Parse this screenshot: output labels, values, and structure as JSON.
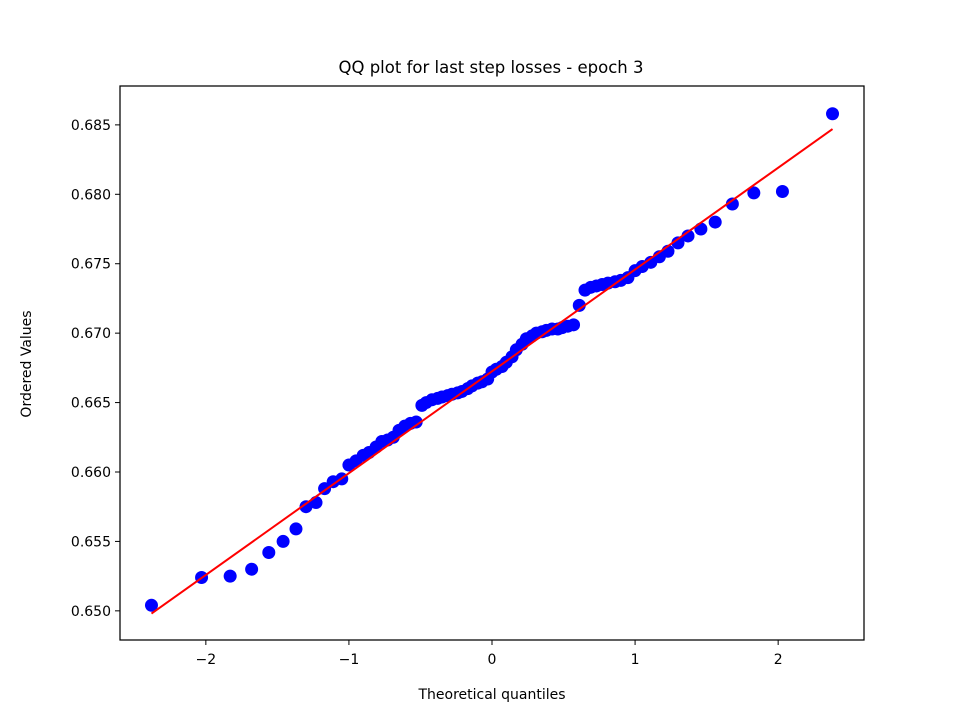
{
  "chart_data": {
    "type": "scatter",
    "title": "QQ plot for last step losses - epoch 3",
    "xlabel": "Theoretical quantiles",
    "ylabel": "Ordered Values",
    "xlim": [
      -2.6,
      2.6
    ],
    "ylim": [
      0.6479,
      0.6878
    ],
    "xticks": [
      -2,
      -1,
      0,
      1,
      2
    ],
    "xtick_labels": [
      "−2",
      "−1",
      "0",
      "1",
      "2"
    ],
    "yticks": [
      0.65,
      0.655,
      0.66,
      0.665,
      0.67,
      0.675,
      0.68,
      0.685
    ],
    "ytick_labels": [
      "0.650",
      "0.655",
      "0.660",
      "0.665",
      "0.670",
      "0.675",
      "0.680",
      "0.685"
    ],
    "grid": false,
    "series": [
      {
        "kind": "points",
        "color": "#0000ff",
        "x": [
          -2.38,
          -2.03,
          -1.83,
          -1.68,
          -1.56,
          -1.46,
          -1.37,
          -1.3,
          -1.23,
          -1.17,
          -1.11,
          -1.05,
          -1.0,
          -0.95,
          -0.9,
          -0.86,
          -0.81,
          -0.77,
          -0.73,
          -0.69,
          -0.65,
          -0.61,
          -0.57,
          -0.53,
          -0.49,
          -0.46,
          -0.42,
          -0.38,
          -0.35,
          -0.31,
          -0.28,
          -0.24,
          -0.21,
          -0.17,
          -0.14,
          -0.1,
          -0.07,
          -0.03,
          0.0,
          0.03,
          0.07,
          0.1,
          0.14,
          0.17,
          0.21,
          0.24,
          0.28,
          0.31,
          0.35,
          0.38,
          0.42,
          0.46,
          0.49,
          0.53,
          0.57,
          0.61,
          0.65,
          0.69,
          0.73,
          0.77,
          0.81,
          0.86,
          0.9,
          0.95,
          1.0,
          1.05,
          1.11,
          1.17,
          1.23,
          1.3,
          1.37,
          1.46,
          1.56,
          1.68,
          1.83,
          2.03,
          2.38
        ],
        "y": [
          0.6504,
          0.6524,
          0.6525,
          0.653,
          0.6542,
          0.655,
          0.6559,
          0.6575,
          0.6578,
          0.6588,
          0.6593,
          0.6595,
          0.6605,
          0.6608,
          0.6612,
          0.6614,
          0.6618,
          0.6622,
          0.6623,
          0.6625,
          0.663,
          0.6633,
          0.6635,
          0.6636,
          0.6648,
          0.665,
          0.6652,
          0.6653,
          0.6654,
          0.6655,
          0.6656,
          0.6657,
          0.6658,
          0.666,
          0.6662,
          0.6664,
          0.6665,
          0.6667,
          0.6672,
          0.6674,
          0.6676,
          0.6679,
          0.6683,
          0.6688,
          0.6692,
          0.6696,
          0.6698,
          0.67,
          0.6701,
          0.6702,
          0.6703,
          0.6703,
          0.6704,
          0.6705,
          0.6706,
          0.672,
          0.6731,
          0.6733,
          0.6734,
          0.6735,
          0.6736,
          0.6737,
          0.6738,
          0.674,
          0.6745,
          0.6748,
          0.6751,
          0.6755,
          0.6759,
          0.6765,
          0.677,
          0.6775,
          0.678,
          0.6793,
          0.6801,
          0.6802,
          0.6858
        ]
      },
      {
        "kind": "line",
        "color": "#ff0000",
        "x": [
          -2.38,
          2.38
        ],
        "y": [
          0.6498,
          0.6847
        ]
      }
    ]
  }
}
